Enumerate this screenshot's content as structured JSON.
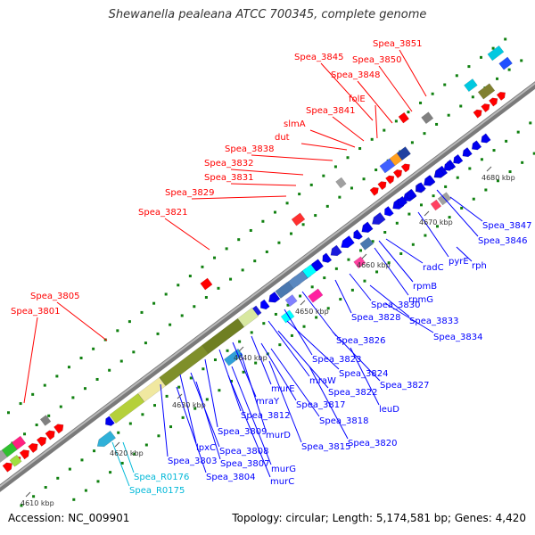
{
  "title": "Shewanella pealeana ATCC 700345, complete genome",
  "footer": {
    "accession": "Accession: NC_009901",
    "topology": "Topology: circular; Length: 5,174,581 bp; Genes: 4,420"
  },
  "colors": {
    "red": "#ff0000",
    "blue": "#0000ff",
    "cyan": "#00b8d8",
    "backbone": "#8c8c8c",
    "dots": "#108010"
  },
  "ticks": [
    {
      "label": "4610 kbp"
    },
    {
      "label": "4620 kbp"
    },
    {
      "label": "4630 kbp"
    },
    {
      "label": "4640 kbp"
    },
    {
      "label": "4650 kbp"
    },
    {
      "label": "4660 kbp"
    },
    {
      "label": "4670 kbp"
    },
    {
      "label": "4680 kbp"
    }
  ],
  "upper_labels": [
    {
      "text": "Spea_3851"
    },
    {
      "text": "Spea_3845"
    },
    {
      "text": "Spea_3850"
    },
    {
      "text": "Spea_3848"
    },
    {
      "text": "folE"
    },
    {
      "text": "Spea_3841"
    },
    {
      "text": "slmA"
    },
    {
      "text": "dut"
    },
    {
      "text": "Spea_3838"
    },
    {
      "text": "Spea_3832"
    },
    {
      "text": "Spea_3831"
    },
    {
      "text": "Spea_3829"
    },
    {
      "text": "Spea_3821"
    },
    {
      "text": "Spea_3805"
    },
    {
      "text": "Spea_3801"
    }
  ],
  "lower_labels": [
    {
      "text": "Spea_3847"
    },
    {
      "text": "Spea_3846"
    },
    {
      "text": "rph"
    },
    {
      "text": "pyrE"
    },
    {
      "text": "radC"
    },
    {
      "text": "rpmB"
    },
    {
      "text": "rpmG"
    },
    {
      "text": "Spea_3830"
    },
    {
      "text": "Spea_3828"
    },
    {
      "text": "Spea_3833"
    },
    {
      "text": "Spea_3834"
    },
    {
      "text": "Spea_3826"
    },
    {
      "text": "Spea_3823"
    },
    {
      "text": "Spea_3824"
    },
    {
      "text": "Spea_3827"
    },
    {
      "text": "mraW"
    },
    {
      "text": "Spea_3822"
    },
    {
      "text": "leuD"
    },
    {
      "text": "murE"
    },
    {
      "text": "mraY"
    },
    {
      "text": "Spea_3817"
    },
    {
      "text": "Spea_3812"
    },
    {
      "text": "Spea_3818"
    },
    {
      "text": "Spea_3809"
    },
    {
      "text": "murD"
    },
    {
      "text": "Spea_3820"
    },
    {
      "text": "Spea_3815"
    },
    {
      "text": "lpxC"
    },
    {
      "text": "Spea_3808"
    },
    {
      "text": "Spea_3803"
    },
    {
      "text": "Spea_3807"
    },
    {
      "text": "murG"
    },
    {
      "text": "Spea_3804"
    },
    {
      "text": "murC"
    },
    {
      "text": "Spea_R0176"
    },
    {
      "text": "Spea_R0175"
    }
  ]
}
